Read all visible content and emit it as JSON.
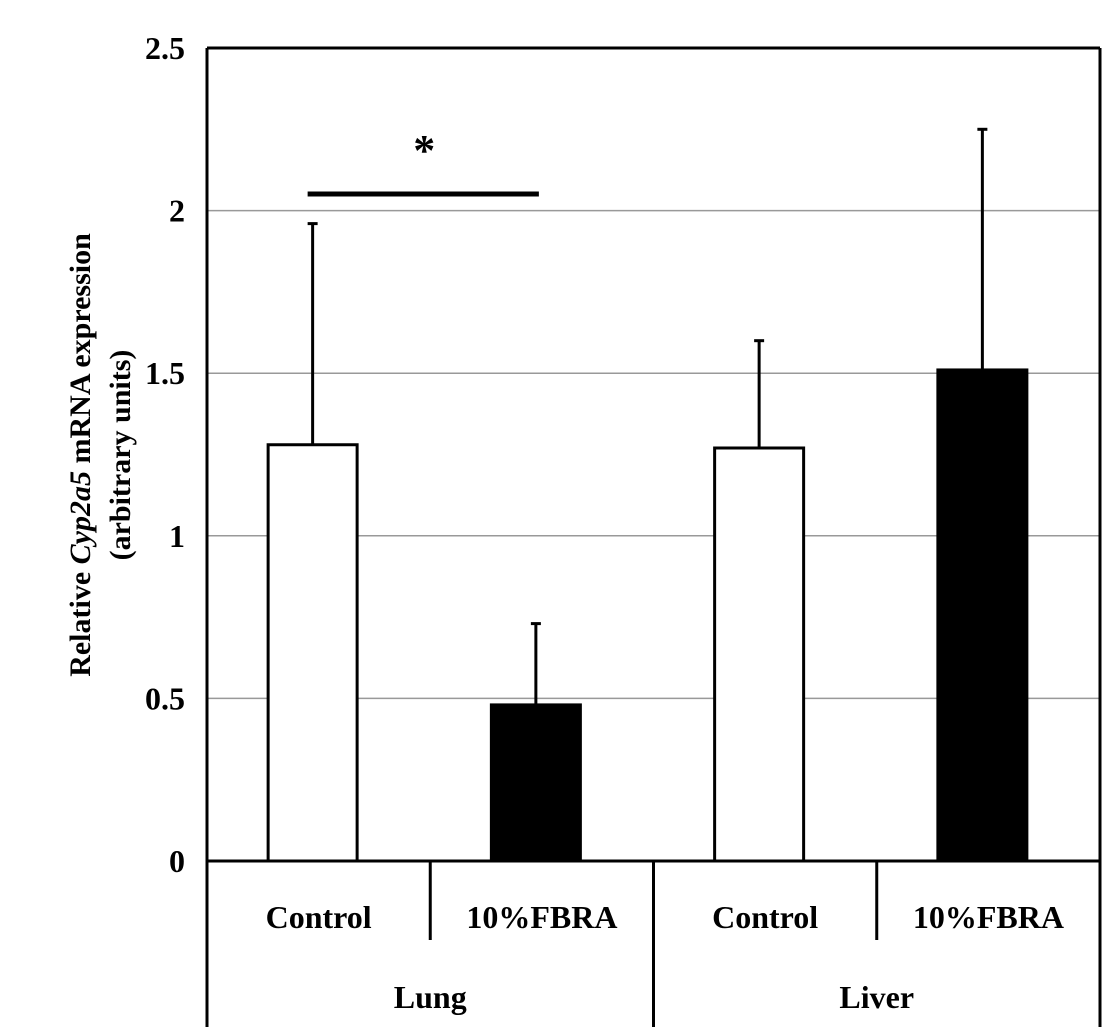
{
  "chart_data": {
    "type": "bar",
    "ylabel": {
      "prefix": "Relative",
      "gene": "Cyp2a5",
      "suffix": "mRNA expression",
      "line2": "(arbitrary units)"
    },
    "categories": [
      "Control",
      "10%FBRA",
      "Control",
      "10%FBRA"
    ],
    "groups": [
      "Lung",
      "Liver"
    ],
    "values": [
      1.28,
      0.48,
      1.27,
      1.51
    ],
    "errors": [
      0.68,
      0.25,
      0.33,
      0.74
    ],
    "colors": [
      "#ffffff",
      "#000000",
      "#ffffff",
      "#000000"
    ],
    "annotation": "*",
    "ylim": [
      0,
      2.5
    ],
    "yticks": [
      0,
      0.5,
      1,
      1.5,
      2,
      2.5
    ],
    "grid": true
  }
}
